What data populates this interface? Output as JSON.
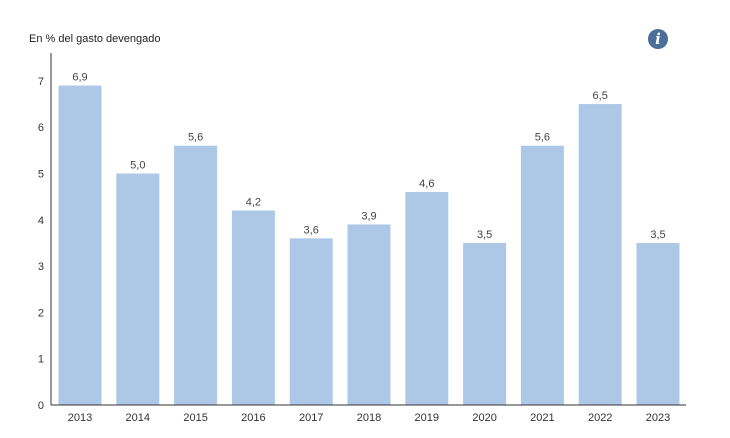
{
  "chart_data": {
    "type": "bar",
    "ylabel": "En % del gasto devengado",
    "categories": [
      "2013",
      "2014",
      "2015",
      "2016",
      "2017",
      "2018",
      "2019",
      "2020",
      "2021",
      "2022",
      "2023"
    ],
    "values": [
      6.9,
      5.0,
      5.6,
      4.2,
      3.6,
      3.9,
      4.6,
      3.5,
      5.6,
      6.5,
      3.5
    ],
    "value_labels": [
      "6,9",
      "5,0",
      "5,6",
      "4,2",
      "3,6",
      "3,9",
      "4,6",
      "3,5",
      "5,6",
      "6,5",
      "3,5"
    ],
    "ylim": [
      0,
      7.6
    ],
    "yticks": [
      0,
      1,
      2,
      3,
      4,
      5,
      6,
      7
    ],
    "grid": false,
    "legend": "none",
    "bar_color": "#adc8e7"
  },
  "info_button": {
    "icon": "info-icon",
    "glyph": "i",
    "color": "#4a6e97"
  }
}
